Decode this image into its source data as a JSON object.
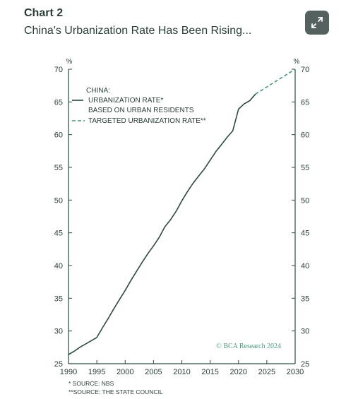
{
  "header": {
    "title": "Chart 2",
    "subtitle": "China's Urbanization Rate Has Been Rising..."
  },
  "icons": {
    "expand": "expand-icon"
  },
  "colors": {
    "actual": "#2b4a43",
    "target": "#4a9a7a",
    "axis": "#2b4a43",
    "text": "#2b3e3a",
    "watermark": "#4a9a7a"
  },
  "chart_data": {
    "type": "line",
    "unit_left": "%",
    "unit_right": "%",
    "xlim": [
      1990,
      2030
    ],
    "ylim": [
      25,
      70
    ],
    "x_ticks": [
      1990,
      1995,
      2000,
      2005,
      2010,
      2015,
      2020,
      2025,
      2030
    ],
    "y_ticks": [
      25,
      30,
      35,
      40,
      45,
      50,
      55,
      60,
      65,
      70
    ],
    "legend": {
      "heading": "CHINA:",
      "line1": "URBANIZATION RATE*",
      "line2": "BASED ON URBAN RESIDENTS",
      "line3": "TARGETED URBANIZATION RATE**"
    },
    "series": [
      {
        "key": "actual",
        "style": "solid",
        "x": [
          1990,
          1991,
          1992,
          1993,
          1994,
          1995,
          1996,
          1997,
          1998,
          1999,
          2000,
          2001,
          2002,
          2003,
          2004,
          2005,
          2006,
          2007,
          2008,
          2009,
          2010,
          2011,
          2012,
          2013,
          2014,
          2015,
          2016,
          2017,
          2018,
          2019,
          2020,
          2021,
          2022,
          2023
        ],
        "y": [
          26.4,
          26.9,
          27.5,
          28.0,
          28.5,
          29.0,
          30.5,
          31.9,
          33.4,
          34.8,
          36.2,
          37.7,
          39.1,
          40.5,
          41.8,
          43.0,
          44.3,
          45.9,
          47.0,
          48.3,
          49.9,
          51.3,
          52.6,
          53.7,
          54.8,
          56.1,
          57.4,
          58.5,
          59.6,
          60.6,
          63.9,
          64.7,
          65.2,
          66.2
        ]
      },
      {
        "key": "target",
        "style": "dashed",
        "x": [
          2023,
          2030
        ],
        "y": [
          66.2,
          70.0
        ]
      }
    ],
    "watermark": "© BCA Research 2024",
    "notes": [
      "* SOURCE: NBS",
      "**SOURCE: THE STATE COUNCIL"
    ]
  }
}
